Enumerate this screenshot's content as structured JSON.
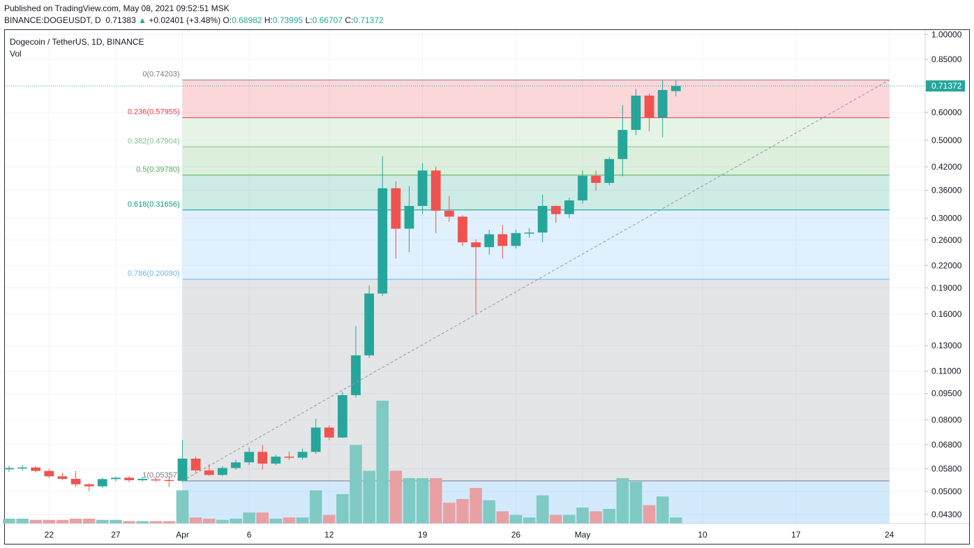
{
  "header": {
    "published": "Published on TradingView.com, May 08, 2021 09:52:51 MSK",
    "symbol": "BINANCE:DOGEUSDT, D",
    "last": "0.71383",
    "arrow": "▲",
    "change": "+0.02401 (+3.48%)",
    "o_label": "O:",
    "o_value": "0.68982",
    "h_label": "H:",
    "h_value": "0.73995",
    "l_label": "L:",
    "l_value": "0.66707",
    "c_label": "C:",
    "c_value": "0.71372"
  },
  "legend": {
    "title": "Dogecoin / TetherUS, 1D, BINANCE",
    "volume": "Vol"
  },
  "colors": {
    "up": "#26a69a",
    "down": "#ef5350",
    "up_volume": "#7fcac3",
    "down_volume": "#e8a0a3"
  },
  "chart_data": {
    "type": "candlestick",
    "symbol": "DOGEUSDT",
    "y_scale": "log",
    "y_ticks": [
      "1.00000",
      "0.85000",
      "0.71372",
      "0.60000",
      "0.50000",
      "0.42000",
      "0.36000",
      "0.30000",
      "0.26000",
      "0.22000",
      "0.19000",
      "0.16000",
      "0.13000",
      "0.11000",
      "0.09500",
      "0.08000",
      "0.06800",
      "0.05800",
      "0.05000",
      "0.04300"
    ],
    "y_tick_values": [
      1.0,
      0.85,
      0.6,
      0.5,
      0.42,
      0.36,
      0.3,
      0.26,
      0.22,
      0.19,
      0.16,
      0.13,
      0.11,
      0.095,
      0.08,
      0.068,
      0.058,
      0.05,
      0.043
    ],
    "last_price_label": "0.71372",
    "last_price": 0.71372,
    "x_ticks": [
      {
        "label": "22",
        "date": "2021-03-22"
      },
      {
        "label": "27",
        "date": "2021-03-27"
      },
      {
        "label": "Apr",
        "date": "2021-04-01"
      },
      {
        "label": "6",
        "date": "2021-04-06"
      },
      {
        "label": "12",
        "date": "2021-04-12"
      },
      {
        "label": "19",
        "date": "2021-04-19"
      },
      {
        "label": "26",
        "date": "2021-04-26"
      },
      {
        "label": "May",
        "date": "2021-05-01"
      },
      {
        "label": "10",
        "date": "2021-05-10"
      },
      {
        "label": "17",
        "date": "2021-05-17"
      },
      {
        "label": "24",
        "date": "2021-05-24"
      }
    ],
    "x_range": [
      "2021-03-19",
      "2021-05-27"
    ],
    "fib_levels": [
      {
        "label": "0(0.74203)",
        "ratio": "0",
        "price": 0.74203,
        "color": "#787b86",
        "fill": null
      },
      {
        "label": "0.236(0.57955)",
        "ratio": "0.236",
        "price": 0.57955,
        "color": "#f23645",
        "fill": "rgba(242,54,69,0.2)"
      },
      {
        "label": "0.382(0.47904)",
        "ratio": "0.382",
        "price": 0.47904,
        "color": "#81c784",
        "fill": "rgba(129,199,132,0.2)"
      },
      {
        "label": "0.5(0.39780)",
        "ratio": "0.5",
        "price": 0.3978,
        "color": "#4caf50",
        "fill": "rgba(76,175,80,0.2)"
      },
      {
        "label": "0.618(0.31656)",
        "ratio": "0.618",
        "price": 0.31656,
        "color": "#089981",
        "fill": "rgba(8,153,129,0.2)"
      },
      {
        "label": "0.786(0.20090)",
        "ratio": "0.786",
        "price": 0.2009,
        "color": "#64b5f6",
        "fill": "rgba(100,181,246,0.2)"
      },
      {
        "label": "1(0.05357)",
        "ratio": "1",
        "price": 0.05357,
        "color": "#787b86",
        "fill": "rgba(120,123,134,0.2)"
      }
    ],
    "fib_range": {
      "start_date": "2021-04-01",
      "end_date": "2021-05-24",
      "trend_from": 0.05357,
      "trend_to": 0.74203
    },
    "candles": [
      {
        "date": "2021-03-19",
        "o": 0.0578,
        "h": 0.0592,
        "l": 0.0568,
        "c": 0.0583
      },
      {
        "date": "2021-03-20",
        "o": 0.0583,
        "h": 0.0595,
        "l": 0.0574,
        "c": 0.0585
      },
      {
        "date": "2021-03-21",
        "o": 0.0585,
        "h": 0.059,
        "l": 0.0566,
        "c": 0.0572
      },
      {
        "date": "2021-03-22",
        "o": 0.0572,
        "h": 0.058,
        "l": 0.0546,
        "c": 0.0552
      },
      {
        "date": "2021-03-23",
        "o": 0.0552,
        "h": 0.0565,
        "l": 0.0538,
        "c": 0.0543
      },
      {
        "date": "2021-03-24",
        "o": 0.0543,
        "h": 0.0572,
        "l": 0.0515,
        "c": 0.0524
      },
      {
        "date": "2021-03-25",
        "o": 0.0524,
        "h": 0.0528,
        "l": 0.0501,
        "c": 0.0517
      },
      {
        "date": "2021-03-26",
        "o": 0.0517,
        "h": 0.0548,
        "l": 0.0512,
        "c": 0.0542
      },
      {
        "date": "2021-03-27",
        "o": 0.0542,
        "h": 0.0551,
        "l": 0.0534,
        "c": 0.0547
      },
      {
        "date": "2021-03-28",
        "o": 0.0547,
        "h": 0.0553,
        "l": 0.0531,
        "c": 0.0538
      },
      {
        "date": "2021-03-29",
        "o": 0.0538,
        "h": 0.055,
        "l": 0.0533,
        "c": 0.0543
      },
      {
        "date": "2021-03-30",
        "o": 0.0541,
        "h": 0.055,
        "l": 0.0532,
        "c": 0.0539
      },
      {
        "date": "2021-03-31",
        "o": 0.0539,
        "h": 0.0552,
        "l": 0.0515,
        "c": 0.0536
      },
      {
        "date": "2021-04-01",
        "o": 0.0536,
        "h": 0.07,
        "l": 0.053,
        "c": 0.062
      },
      {
        "date": "2021-04-02",
        "o": 0.062,
        "h": 0.0628,
        "l": 0.0565,
        "c": 0.0574
      },
      {
        "date": "2021-04-03",
        "o": 0.0574,
        "h": 0.0598,
        "l": 0.0554,
        "c": 0.0557
      },
      {
        "date": "2021-04-04",
        "o": 0.0557,
        "h": 0.059,
        "l": 0.0553,
        "c": 0.0583
      },
      {
        "date": "2021-04-05",
        "o": 0.0583,
        "h": 0.0615,
        "l": 0.0576,
        "c": 0.0605
      },
      {
        "date": "2021-04-06",
        "o": 0.0605,
        "h": 0.0668,
        "l": 0.0595,
        "c": 0.0648
      },
      {
        "date": "2021-04-07",
        "o": 0.0648,
        "h": 0.0678,
        "l": 0.0578,
        "c": 0.06
      },
      {
        "date": "2021-04-08",
        "o": 0.06,
        "h": 0.0635,
        "l": 0.0594,
        "c": 0.0628
      },
      {
        "date": "2021-04-09",
        "o": 0.0628,
        "h": 0.065,
        "l": 0.0614,
        "c": 0.0624
      },
      {
        "date": "2021-04-10",
        "o": 0.0624,
        "h": 0.0662,
        "l": 0.0616,
        "c": 0.0648
      },
      {
        "date": "2021-04-11",
        "o": 0.0648,
        "h": 0.0805,
        "l": 0.064,
        "c": 0.076
      },
      {
        "date": "2021-04-12",
        "o": 0.076,
        "h": 0.077,
        "l": 0.07,
        "c": 0.0712
      },
      {
        "date": "2021-04-13",
        "o": 0.0712,
        "h": 0.096,
        "l": 0.071,
        "c": 0.094
      },
      {
        "date": "2021-04-14",
        "o": 0.094,
        "h": 0.148,
        "l": 0.0925,
        "c": 0.122
      },
      {
        "date": "2021-04-15",
        "o": 0.122,
        "h": 0.193,
        "l": 0.12,
        "c": 0.183
      },
      {
        "date": "2021-04-16",
        "o": 0.183,
        "h": 0.45,
        "l": 0.18,
        "c": 0.365
      },
      {
        "date": "2021-04-17",
        "o": 0.365,
        "h": 0.382,
        "l": 0.23,
        "c": 0.28
      },
      {
        "date": "2021-04-18",
        "o": 0.28,
        "h": 0.37,
        "l": 0.24,
        "c": 0.325
      },
      {
        "date": "2021-04-19",
        "o": 0.325,
        "h": 0.43,
        "l": 0.308,
        "c": 0.41
      },
      {
        "date": "2021-04-20",
        "o": 0.41,
        "h": 0.421,
        "l": 0.272,
        "c": 0.315
      },
      {
        "date": "2021-04-21",
        "o": 0.315,
        "h": 0.347,
        "l": 0.293,
        "c": 0.303
      },
      {
        "date": "2021-04-22",
        "o": 0.303,
        "h": 0.306,
        "l": 0.25,
        "c": 0.256
      },
      {
        "date": "2021-04-23",
        "o": 0.256,
        "h": 0.261,
        "l": 0.16,
        "c": 0.248
      },
      {
        "date": "2021-04-24",
        "o": 0.248,
        "h": 0.278,
        "l": 0.236,
        "c": 0.27
      },
      {
        "date": "2021-04-25",
        "o": 0.27,
        "h": 0.287,
        "l": 0.23,
        "c": 0.25
      },
      {
        "date": "2021-04-26",
        "o": 0.25,
        "h": 0.278,
        "l": 0.246,
        "c": 0.272
      },
      {
        "date": "2021-04-27",
        "o": 0.272,
        "h": 0.281,
        "l": 0.264,
        "c": 0.273
      },
      {
        "date": "2021-04-28",
        "o": 0.273,
        "h": 0.35,
        "l": 0.256,
        "c": 0.325
      },
      {
        "date": "2021-04-29",
        "o": 0.325,
        "h": 0.326,
        "l": 0.291,
        "c": 0.308
      },
      {
        "date": "2021-04-30",
        "o": 0.308,
        "h": 0.343,
        "l": 0.3,
        "c": 0.337
      },
      {
        "date": "2021-05-01",
        "o": 0.337,
        "h": 0.41,
        "l": 0.33,
        "c": 0.396
      },
      {
        "date": "2021-05-02",
        "o": 0.396,
        "h": 0.41,
        "l": 0.359,
        "c": 0.378
      },
      {
        "date": "2021-05-03",
        "o": 0.378,
        "h": 0.448,
        "l": 0.372,
        "c": 0.442
      },
      {
        "date": "2021-05-04",
        "o": 0.442,
        "h": 0.63,
        "l": 0.395,
        "c": 0.535
      },
      {
        "date": "2021-05-05",
        "o": 0.535,
        "h": 0.7,
        "l": 0.517,
        "c": 0.67
      },
      {
        "date": "2021-05-06",
        "o": 0.67,
        "h": 0.679,
        "l": 0.53,
        "c": 0.58
      },
      {
        "date": "2021-05-07",
        "o": 0.58,
        "h": 0.74,
        "l": 0.51,
        "c": 0.695
      },
      {
        "date": "2021-05-08",
        "o": 0.68982,
        "h": 0.73995,
        "l": 0.66707,
        "c": 0.71372
      }
    ],
    "volume_scale": "relative",
    "volumes": [
      0.04,
      0.04,
      0.03,
      0.03,
      0.03,
      0.04,
      0.04,
      0.03,
      0.03,
      0.02,
      0.02,
      0.02,
      0.02,
      0.27,
      0.05,
      0.04,
      0.03,
      0.04,
      0.09,
      0.09,
      0.04,
      0.05,
      0.05,
      0.27,
      0.07,
      0.24,
      0.64,
      0.43,
      1.0,
      0.43,
      0.37,
      0.37,
      0.37,
      0.17,
      0.2,
      0.29,
      0.19,
      0.1,
      0.07,
      0.05,
      0.23,
      0.07,
      0.07,
      0.13,
      0.1,
      0.12,
      0.37,
      0.34,
      0.15,
      0.22,
      0.05
    ]
  }
}
